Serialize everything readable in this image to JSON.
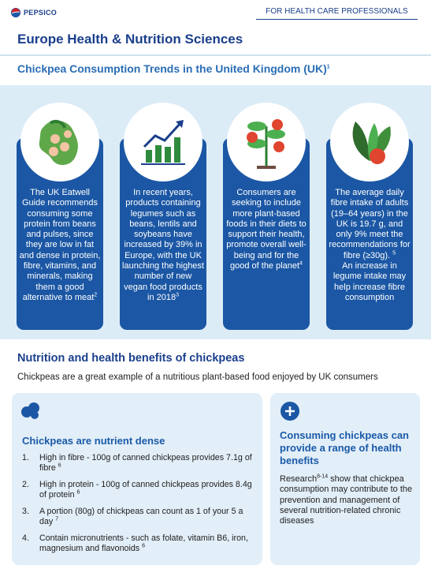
{
  "header": {
    "logo": "PEPSICO",
    "tag": "FOR HEALTH CARE PROFESSIONALS"
  },
  "title": "Europe Health & Nutrition Sciences",
  "subtitle": {
    "text": "Chickpea Consumption Trends in the United  Kingdom (UK)",
    "note": "1"
  },
  "cards": [
    {
      "text": "The UK Eatwell Guide recommends consuming some protein from beans and pulses, since they are low in fat and dense in protein, fibre, vitamins, and minerals, making them a good alternative to meat",
      "note": "2"
    },
    {
      "text": "In recent years, products containing legumes such as beans, lentils and soybeans have increased by 39% in Europe, with the UK launching the highest number of new vegan food products in 2018",
      "note": "3"
    },
    {
      "text": "Consumers are seeking to include more plant-based foods in their diets to support their health, promote overall well-being and for the good of the planet",
      "note": "4"
    },
    {
      "text": "The average daily fibre intake of adults (19–64 years) in the UK is 19.7 g, and only 9% meet the recommendations for fibre (≥30g).",
      "note": "5",
      "after": "An increase in legume intake may help increase fibre consumption"
    }
  ],
  "section": {
    "heading": "Nutrition and health benefits of chickpeas",
    "intro": "Chickpeas are a great example of a nutritious plant-based food enjoyed by UK consumers"
  },
  "left_box": {
    "title": "Chickpeas are nutrient dense",
    "items": [
      {
        "marker": "1.",
        "text": "High in fibre - 100g of canned chickpeas provides 7.1g of fibre",
        "note": "6"
      },
      {
        "marker": "2.",
        "text": "High in protein - 100g of canned chickpeas provides 8.4g of protein",
        "note": "6"
      },
      {
        "marker": "3.",
        "text": "A portion (80g) of chickpeas can count as 1 of your 5 a day",
        "note": "7"
      },
      {
        "marker": "4.",
        "text": "Contain micronutrients - such as folate, vitamin B6, iron, magnesium and flavonoids",
        "note": "6"
      }
    ]
  },
  "right_box": {
    "title": "Consuming chickpeas can provide a range of health benefits",
    "lead": "Research",
    "note": "8-14",
    "text": "show that chickpea consumption may contribute to the prevention and management of several nutrition-related chronic diseases"
  }
}
